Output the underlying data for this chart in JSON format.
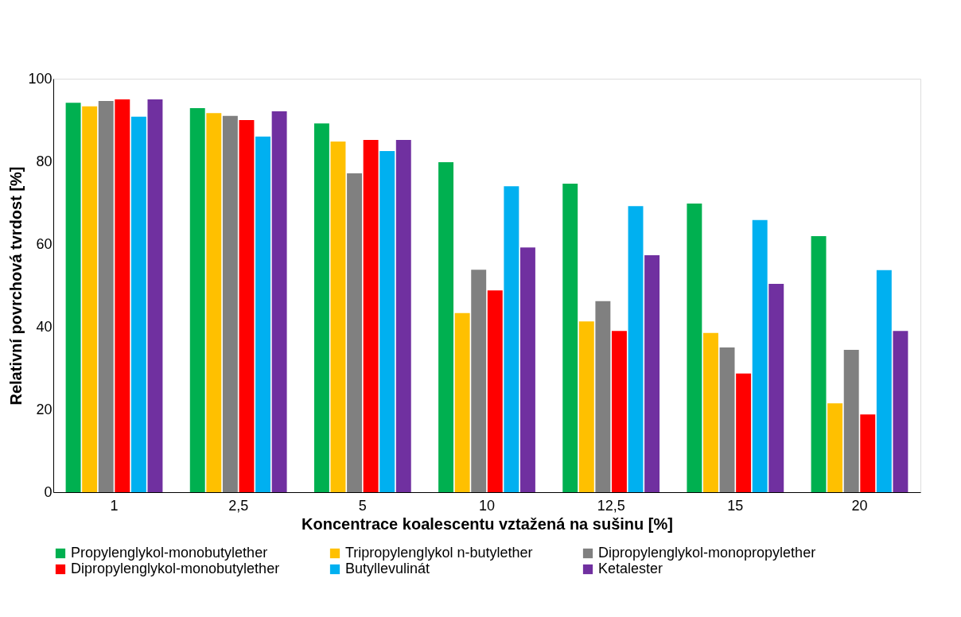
{
  "chart_data": {
    "type": "bar",
    "xlabel": "Koncentrace koalescentu vztažená na sušinu [%]",
    "ylabel": "Relativní povrchová tvrdost [%]",
    "categories": [
      "1",
      "2,5",
      "5",
      "10",
      "12,5",
      "15",
      "20"
    ],
    "ylim": [
      0,
      100
    ],
    "yticks": [
      0,
      20,
      40,
      60,
      80,
      100
    ],
    "grid": false,
    "legend": "bottom",
    "series": [
      {
        "name": "Propylenglykol-monobutylether",
        "color": "#00b050",
        "values": [
          94.2,
          92.9,
          89.2,
          79.8,
          74.6,
          69.8,
          61.9
        ]
      },
      {
        "name": "Tripropylenglykol n-butylether",
        "color": "#ffc000",
        "values": [
          93.3,
          91.7,
          84.8,
          43.3,
          41.3,
          38.5,
          21.5
        ]
      },
      {
        "name": "Dipropylenglykol-monopropylether",
        "color": "#808080",
        "values": [
          94.6,
          91,
          77.1,
          53.8,
          46.2,
          35,
          34.4
        ]
      },
      {
        "name": "Dipropylenglykol-monobutylether",
        "color": "#ff0000",
        "values": [
          95,
          90,
          85.2,
          48.8,
          39,
          28.7,
          18.8
        ]
      },
      {
        "name": "Butyllevulinát",
        "color": "#00b0f0",
        "values": [
          90.8,
          86,
          82.5,
          74,
          69.2,
          65.8,
          53.7
        ]
      },
      {
        "name": "Ketalester",
        "color": "#7030a0",
        "values": [
          95,
          92.1,
          85.2,
          59.2,
          57.3,
          50.4,
          39
        ]
      }
    ]
  }
}
